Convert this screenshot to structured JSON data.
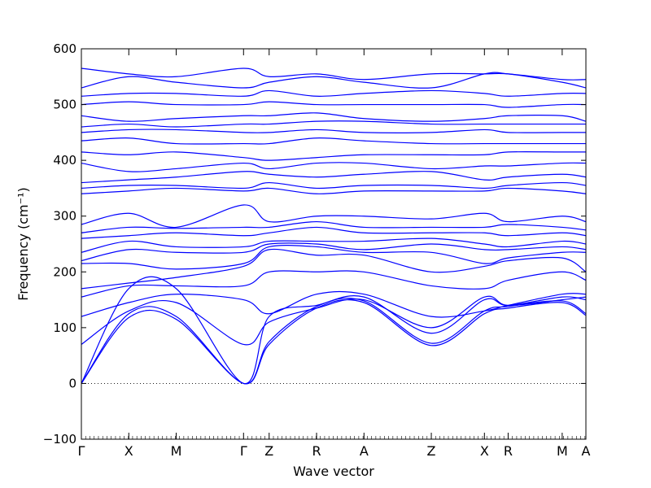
{
  "chart_data": {
    "type": "line",
    "title": "",
    "xlabel": "Wave vector",
    "ylabel": "Frequency (cm⁻¹)",
    "ylim": [
      -100,
      600
    ],
    "y_ticks": [
      -100,
      0,
      100,
      200,
      300,
      400,
      500,
      600
    ],
    "grid": false,
    "legend": "none",
    "zero_line": true,
    "series_color": "#0000ff",
    "x_ticks": [
      {
        "label": "Γ",
        "x": 0.0
      },
      {
        "label": "X",
        "x": 0.5
      },
      {
        "label": "M",
        "x": 1.0
      },
      {
        "label": "Γ",
        "x": 1.71
      },
      {
        "label": "Z",
        "x": 1.98
      },
      {
        "label": "R",
        "x": 2.48
      },
      {
        "label": "A",
        "x": 2.98
      },
      {
        "label": "Z",
        "x": 3.69
      },
      {
        "label": "X",
        "x": 4.25
      },
      {
        "label": "R",
        "x": 4.5
      },
      {
        "label": "M",
        "x": 5.07
      },
      {
        "label": "A",
        "x": 5.32
      }
    ],
    "xlim": [
      0,
      5.32
    ],
    "series": [
      {
        "x": [
          0,
          0.5,
          1.0,
          1.71,
          1.98,
          2.48,
          2.98,
          3.69,
          4.25,
          4.5,
          5.07,
          5.32
        ],
        "values": [
          0,
          118,
          115,
          0,
          70,
          135,
          145,
          68,
          125,
          135,
          145,
          122
        ]
      },
      {
        "x": [
          0,
          0.5,
          1.0,
          1.71,
          1.98,
          2.48,
          2.98,
          3.69,
          4.25,
          4.5,
          5.07,
          5.32
        ],
        "values": [
          0,
          125,
          120,
          0,
          75,
          138,
          148,
          72,
          130,
          138,
          148,
          125
        ]
      },
      {
        "x": [
          0,
          0.5,
          1.0,
          1.71,
          1.98,
          2.48,
          2.98,
          3.69,
          4.25,
          4.5,
          5.07,
          5.32
        ],
        "values": [
          0,
          170,
          170,
          0,
          120,
          140,
          155,
          90,
          150,
          140,
          155,
          150
        ]
      },
      {
        "x": [
          0,
          0.5,
          1.0,
          1.71,
          1.98,
          2.48,
          2.98,
          3.69,
          4.25,
          4.5,
          5.07,
          5.32
        ],
        "values": [
          70,
          130,
          145,
          70,
          110,
          135,
          150,
          100,
          155,
          140,
          150,
          155
        ]
      },
      {
        "x": [
          0,
          0.5,
          1.0,
          1.71,
          1.98,
          2.48,
          2.98,
          3.69,
          4.25,
          4.5,
          5.07,
          5.32
        ],
        "values": [
          120,
          145,
          160,
          150,
          125,
          160,
          160,
          120,
          130,
          140,
          160,
          160
        ]
      },
      {
        "x": [
          0,
          0.5,
          1.0,
          1.71,
          1.98,
          2.48,
          2.98,
          3.69,
          4.25,
          4.5,
          5.07,
          5.32
        ],
        "values": [
          155,
          175,
          175,
          175,
          200,
          200,
          200,
          175,
          170,
          185,
          200,
          185
        ]
      },
      {
        "x": [
          0,
          0.5,
          1.0,
          1.71,
          1.98,
          2.48,
          2.98,
          3.69,
          4.25,
          4.5,
          5.07,
          5.32
        ],
        "values": [
          170,
          180,
          190,
          210,
          240,
          230,
          230,
          200,
          210,
          220,
          225,
          200
        ]
      },
      {
        "x": [
          0,
          0.5,
          1.0,
          1.71,
          1.98,
          2.48,
          2.98,
          3.69,
          4.25,
          4.5,
          5.07,
          5.32
        ],
        "values": [
          215,
          215,
          205,
          215,
          245,
          245,
          235,
          235,
          215,
          225,
          235,
          235
        ]
      },
      {
        "x": [
          0,
          0.5,
          1.0,
          1.71,
          1.98,
          2.48,
          2.98,
          3.69,
          4.25,
          4.5,
          5.07,
          5.32
        ],
        "values": [
          220,
          240,
          235,
          235,
          250,
          250,
          240,
          250,
          240,
          240,
          245,
          240
        ]
      },
      {
        "x": [
          0,
          0.5,
          1.0,
          1.71,
          1.98,
          2.48,
          2.98,
          3.69,
          4.25,
          4.5,
          5.07,
          5.32
        ],
        "values": [
          235,
          255,
          245,
          245,
          255,
          255,
          255,
          260,
          250,
          245,
          255,
          250
        ]
      },
      {
        "x": [
          0,
          0.5,
          1.0,
          1.71,
          1.98,
          2.48,
          2.98,
          3.69,
          4.25,
          4.5,
          5.07,
          5.32
        ],
        "values": [
          260,
          265,
          270,
          265,
          270,
          280,
          270,
          270,
          270,
          265,
          270,
          265
        ]
      },
      {
        "x": [
          0,
          0.5,
          1.0,
          1.71,
          1.98,
          2.48,
          2.98,
          3.69,
          4.25,
          4.5,
          5.07,
          5.32
        ],
        "values": [
          270,
          280,
          278,
          280,
          280,
          290,
          280,
          280,
          280,
          285,
          280,
          275
        ]
      },
      {
        "x": [
          0,
          0.5,
          1.0,
          1.71,
          1.98,
          2.48,
          2.98,
          3.69,
          4.25,
          4.5,
          5.07,
          5.32
        ],
        "values": [
          285,
          305,
          280,
          320,
          290,
          300,
          300,
          295,
          305,
          290,
          300,
          290
        ]
      },
      {
        "x": [
          0,
          0.5,
          1.0,
          1.71,
          1.98,
          2.48,
          2.98,
          3.69,
          4.25,
          4.5,
          5.07,
          5.32
        ],
        "values": [
          340,
          345,
          350,
          345,
          350,
          340,
          345,
          345,
          345,
          350,
          345,
          340
        ]
      },
      {
        "x": [
          0,
          0.5,
          1.0,
          1.71,
          1.98,
          2.48,
          2.98,
          3.69,
          4.25,
          4.5,
          5.07,
          5.32
        ],
        "values": [
          350,
          355,
          355,
          350,
          360,
          350,
          355,
          355,
          350,
          355,
          360,
          355
        ]
      },
      {
        "x": [
          0,
          0.5,
          1.0,
          1.71,
          1.98,
          2.48,
          2.98,
          3.69,
          4.25,
          4.5,
          5.07,
          5.32
        ],
        "values": [
          360,
          365,
          370,
          380,
          375,
          370,
          375,
          380,
          365,
          370,
          375,
          370
        ]
      },
      {
        "x": [
          0,
          0.5,
          1.0,
          1.71,
          1.98,
          2.48,
          2.98,
          3.69,
          4.25,
          4.5,
          5.07,
          5.32
        ],
        "values": [
          395,
          380,
          385,
          395,
          385,
          395,
          395,
          385,
          390,
          390,
          395,
          395
        ]
      },
      {
        "x": [
          0,
          0.5,
          1.0,
          1.71,
          1.98,
          2.48,
          2.98,
          3.69,
          4.25,
          4.5,
          5.07,
          5.32
        ],
        "values": [
          415,
          410,
          415,
          405,
          400,
          405,
          410,
          410,
          410,
          415,
          415,
          415
        ]
      },
      {
        "x": [
          0,
          0.5,
          1.0,
          1.71,
          1.98,
          2.48,
          2.98,
          3.69,
          4.25,
          4.5,
          5.07,
          5.32
        ],
        "values": [
          435,
          440,
          430,
          430,
          430,
          440,
          435,
          430,
          430,
          430,
          430,
          430
        ]
      },
      {
        "x": [
          0,
          0.5,
          1.0,
          1.71,
          1.98,
          2.48,
          2.98,
          3.69,
          4.25,
          4.5,
          5.07,
          5.32
        ],
        "values": [
          450,
          455,
          455,
          450,
          450,
          455,
          450,
          450,
          455,
          450,
          450,
          450
        ]
      },
      {
        "x": [
          0,
          0.5,
          1.0,
          1.71,
          1.98,
          2.48,
          2.98,
          3.69,
          4.25,
          4.5,
          5.07,
          5.32
        ],
        "values": [
          460,
          465,
          460,
          465,
          465,
          470,
          470,
          465,
          465,
          465,
          465,
          465
        ]
      },
      {
        "x": [
          0,
          0.5,
          1.0,
          1.71,
          1.98,
          2.48,
          2.98,
          3.69,
          4.25,
          4.5,
          5.07,
          5.32
        ],
        "values": [
          480,
          470,
          475,
          480,
          480,
          485,
          475,
          470,
          475,
          480,
          480,
          470
        ]
      },
      {
        "x": [
          0,
          0.5,
          1.0,
          1.71,
          1.98,
          2.48,
          2.98,
          3.69,
          4.25,
          4.5,
          5.07,
          5.32
        ],
        "values": [
          500,
          505,
          500,
          500,
          505,
          500,
          500,
          500,
          500,
          495,
          500,
          500
        ]
      },
      {
        "x": [
          0,
          0.5,
          1.0,
          1.71,
          1.98,
          2.48,
          2.98,
          3.69,
          4.25,
          4.5,
          5.07,
          5.32
        ],
        "values": [
          515,
          520,
          520,
          515,
          525,
          515,
          520,
          525,
          520,
          515,
          520,
          520
        ]
      },
      {
        "x": [
          0,
          0.5,
          1.0,
          1.71,
          1.98,
          2.48,
          2.98,
          3.69,
          4.25,
          4.5,
          5.07,
          5.32
        ],
        "values": [
          530,
          550,
          540,
          530,
          540,
          550,
          540,
          530,
          555,
          555,
          540,
          530
        ]
      },
      {
        "x": [
          0,
          0.5,
          1.0,
          1.71,
          1.98,
          2.48,
          2.98,
          3.69,
          4.25,
          4.5,
          5.07,
          5.32
        ],
        "values": [
          565,
          555,
          550,
          565,
          550,
          555,
          545,
          555,
          555,
          555,
          545,
          545
        ]
      }
    ]
  }
}
